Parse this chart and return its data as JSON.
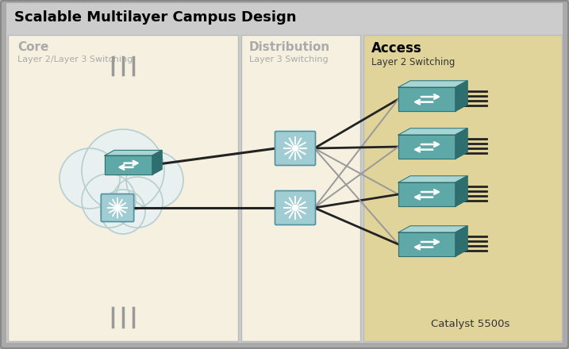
{
  "title": "Scalable Multilayer Campus Design",
  "bg_outer": "#aaaaaa",
  "core_bg": "#f5f0e0",
  "dist_bg": "#f5f0e0",
  "access_bg": "#e0d49a",
  "title_fontsize": 13,
  "core_label": "Core",
  "core_sublabel": "Layer 2/Layer 3 Switching",
  "dist_label": "Distribution",
  "dist_sublabel": "Layer 3 Switching",
  "access_label": "Access",
  "access_sublabel": "Layer 2 Switching",
  "catalyst_label": "Catalyst 5500s",
  "switch_color": "#5fa8a8",
  "switch_top": "#a8d4d4",
  "switch_side": "#2e6e6e",
  "cloud_color": "#e8f0f0",
  "cloud_border": "#b8cece",
  "dist_switch_color": "#a0ccd4",
  "dist_switch_border": "#5090a0",
  "line_dark": "#222222",
  "line_gray": "#999999"
}
